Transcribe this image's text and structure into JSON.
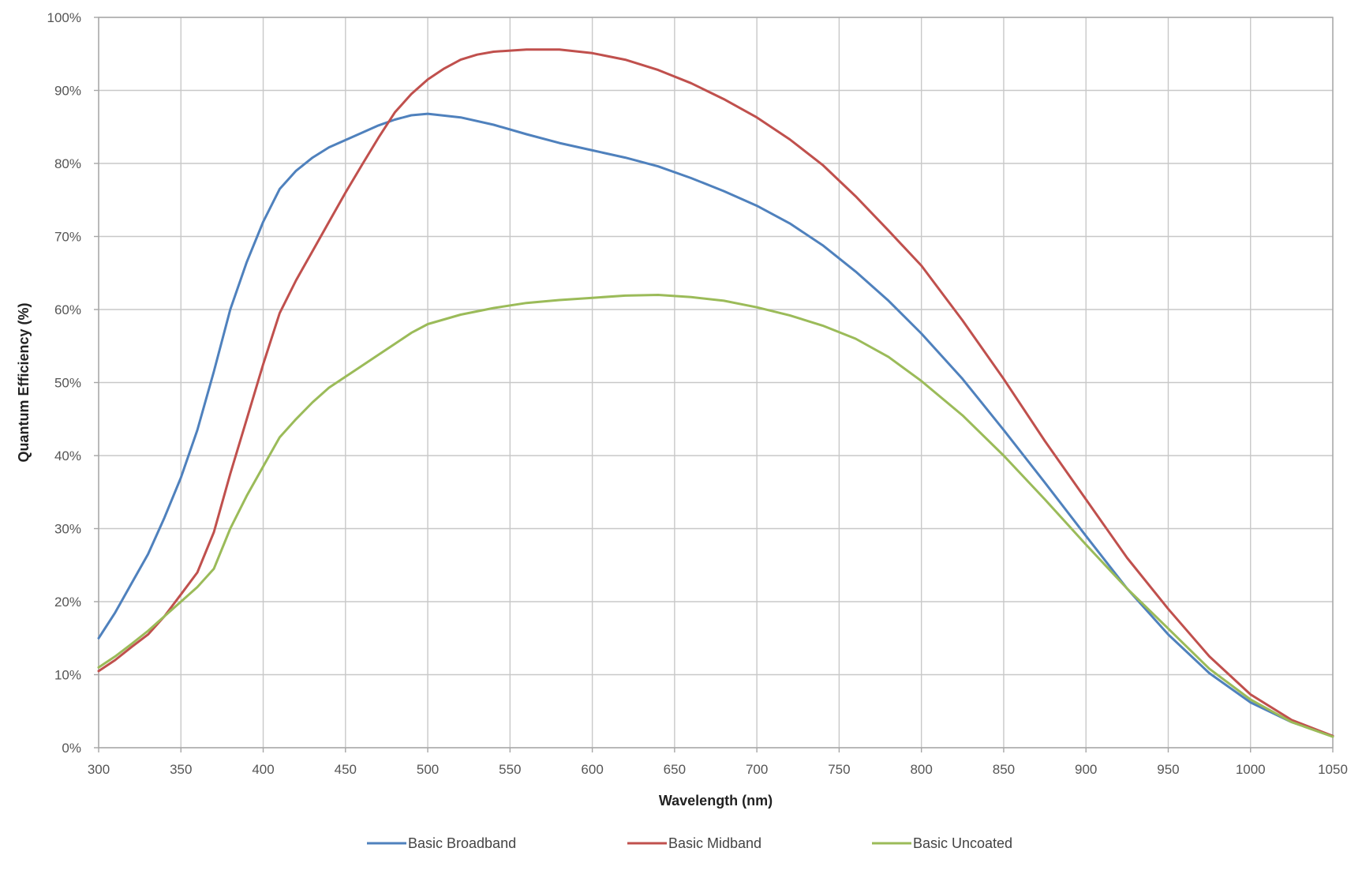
{
  "chart_data": {
    "type": "line",
    "title": "",
    "xlabel": "Wavelength (nm)",
    "ylabel": "Quantum Efficiency (%)",
    "xlim": [
      300,
      1050
    ],
    "ylim": [
      0,
      100
    ],
    "x_ticks": [
      300,
      350,
      400,
      450,
      500,
      550,
      600,
      650,
      700,
      750,
      800,
      850,
      900,
      950,
      1000,
      1050
    ],
    "x_tick_labels": [
      "300",
      "350",
      "400",
      "450",
      "500",
      "550",
      "600",
      "650",
      "700",
      "750",
      "800",
      "850",
      "900",
      "950",
      "1000",
      "1050"
    ],
    "y_ticks": [
      0,
      10,
      20,
      30,
      40,
      50,
      60,
      70,
      80,
      90,
      100
    ],
    "y_tick_labels": [
      "0%",
      "10%",
      "20%",
      "30%",
      "40%",
      "50%",
      "60%",
      "70%",
      "80%",
      "90%",
      "100%"
    ],
    "grid": true,
    "legend_position": "bottom",
    "series": [
      {
        "name": "Basic Broadband",
        "color": "#4f81bd",
        "x": [
          300,
          310,
          320,
          330,
          340,
          350,
          360,
          370,
          380,
          390,
          400,
          410,
          420,
          430,
          440,
          450,
          460,
          470,
          480,
          490,
          500,
          520,
          540,
          560,
          580,
          600,
          620,
          640,
          660,
          680,
          700,
          720,
          740,
          760,
          780,
          800,
          825,
          850,
          875,
          900,
          925,
          950,
          975,
          1000,
          1025,
          1050
        ],
        "y": [
          15,
          18.5,
          22.5,
          26.5,
          31.5,
          37,
          43.5,
          51.5,
          60,
          66.5,
          72,
          76.5,
          79,
          80.8,
          82.2,
          83.2,
          84.2,
          85.2,
          86,
          86.6,
          86.8,
          86.3,
          85.3,
          84,
          82.8,
          81.8,
          80.8,
          79.6,
          78,
          76.2,
          74.2,
          71.8,
          68.8,
          65.2,
          61.2,
          56.7,
          50.5,
          43.5,
          36.3,
          29,
          21.8,
          15.5,
          10.2,
          6.2,
          3.5,
          1.6
        ]
      },
      {
        "name": "Basic Midband",
        "color": "#c0504d",
        "x": [
          300,
          310,
          320,
          330,
          340,
          350,
          360,
          370,
          380,
          390,
          400,
          410,
          420,
          430,
          440,
          450,
          460,
          470,
          480,
          490,
          500,
          510,
          520,
          530,
          540,
          560,
          580,
          600,
          620,
          640,
          660,
          680,
          700,
          720,
          740,
          760,
          780,
          800,
          825,
          850,
          875,
          900,
          925,
          950,
          975,
          1000,
          1025,
          1050
        ],
        "y": [
          10.5,
          12,
          13.8,
          15.5,
          18,
          21,
          24,
          29.5,
          37.5,
          45,
          52.5,
          59.5,
          64,
          68,
          72,
          76,
          79.8,
          83.5,
          87,
          89.5,
          91.5,
          93,
          94.2,
          94.9,
          95.3,
          95.6,
          95.6,
          95.1,
          94.2,
          92.8,
          91,
          88.8,
          86.3,
          83.3,
          79.8,
          75.5,
          70.8,
          66,
          58.5,
          50.5,
          42,
          34,
          26,
          19,
          12.5,
          7.3,
          3.8,
          1.6
        ]
      },
      {
        "name": "Basic Uncoated",
        "color": "#9bbb59",
        "x": [
          300,
          310,
          320,
          330,
          340,
          350,
          360,
          370,
          380,
          390,
          400,
          410,
          420,
          430,
          440,
          450,
          460,
          470,
          480,
          490,
          500,
          520,
          540,
          560,
          580,
          600,
          620,
          640,
          660,
          680,
          700,
          720,
          740,
          760,
          780,
          800,
          825,
          850,
          875,
          900,
          925,
          950,
          975,
          1000,
          1025,
          1050
        ],
        "y": [
          11,
          12.5,
          14.2,
          16,
          18,
          20,
          22,
          24.5,
          30,
          34.5,
          38.5,
          42.5,
          45,
          47.3,
          49.3,
          50.8,
          52.3,
          53.8,
          55.3,
          56.8,
          58,
          59.3,
          60.2,
          60.9,
          61.3,
          61.6,
          61.9,
          62,
          61.7,
          61.2,
          60.3,
          59.2,
          57.8,
          56,
          53.5,
          50.2,
          45.5,
          40,
          34,
          27.8,
          21.8,
          16.3,
          10.8,
          6.6,
          3.5,
          1.5
        ]
      }
    ]
  }
}
